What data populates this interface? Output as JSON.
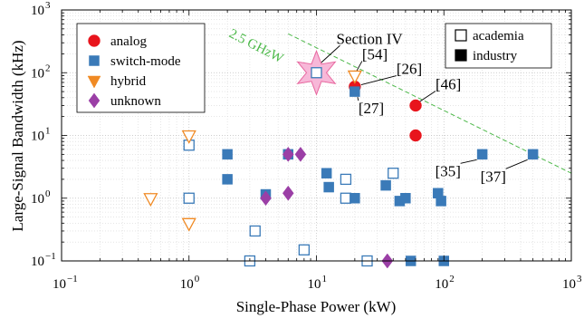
{
  "chart_data": {
    "type": "scatter",
    "xscale": "log",
    "yscale": "log",
    "xlim": [
      0.1,
      1000
    ],
    "ylim": [
      0.1,
      1000
    ],
    "grid": true,
    "xlabel": "Single-Phase Power (kW)",
    "ylabel": "Large-Signal Bandwidth (kHz)",
    "x_ticks": [
      {
        "value": 0.1,
        "base": "10",
        "exp": "−1"
      },
      {
        "value": 1,
        "base": "10",
        "exp": "0"
      },
      {
        "value": 10,
        "base": "10",
        "exp": "1"
      },
      {
        "value": 100,
        "base": "10",
        "exp": "2"
      },
      {
        "value": 1000,
        "base": "10",
        "exp": "3"
      }
    ],
    "y_ticks": [
      {
        "value": 0.1,
        "base": "10",
        "exp": "−1"
      },
      {
        "value": 1,
        "base": "10",
        "exp": "0"
      },
      {
        "value": 10,
        "base": "10",
        "exp": "1"
      },
      {
        "value": 100,
        "base": "10",
        "exp": "2"
      },
      {
        "value": 1000,
        "base": "10",
        "exp": "3"
      }
    ],
    "colors": {
      "analog": "#e8141c",
      "switch-mode": "#3a7ab8",
      "hybrid": "#f08a24",
      "unknown": "#9b3fa6",
      "limit_line": "#4cb849",
      "star_fill": "#f7b8d8",
      "star_edge": "#e8679f"
    },
    "legend_categories": {
      "position": "top-left",
      "items": [
        {
          "label": "analog",
          "series": "analog",
          "marker": "circle"
        },
        {
          "label": "switch-mode",
          "series": "switch-mode",
          "marker": "square"
        },
        {
          "label": "hybrid",
          "series": "hybrid",
          "marker": "triangle-down"
        },
        {
          "label": "unknown",
          "series": "unknown",
          "marker": "diamond"
        }
      ]
    },
    "legend_origin": {
      "position": "top-right",
      "items": [
        {
          "label": "academia",
          "filled": false
        },
        {
          "label": "industry",
          "filled": true
        }
      ]
    },
    "limit_line": {
      "label": "2.5 GHzW",
      "x": [
        6,
        1000
      ],
      "y": [
        416.7,
        2.5
      ]
    },
    "series": [
      {
        "name": "analog",
        "marker": "circle",
        "points": [
          {
            "x": 20,
            "y": 60,
            "filled": true
          },
          {
            "x": 60,
            "y": 30,
            "filled": true
          },
          {
            "x": 60,
            "y": 10,
            "filled": true
          }
        ]
      },
      {
        "name": "switch-mode",
        "marker": "square",
        "points": [
          {
            "x": 1,
            "y": 7,
            "filled": false
          },
          {
            "x": 1,
            "y": 1,
            "filled": false
          },
          {
            "x": 2,
            "y": 5,
            "filled": true
          },
          {
            "x": 2,
            "y": 2,
            "filled": true
          },
          {
            "x": 3,
            "y": 0.1,
            "filled": false
          },
          {
            "x": 3.3,
            "y": 0.3,
            "filled": false
          },
          {
            "x": 4,
            "y": 1.15,
            "filled": true
          },
          {
            "x": 6,
            "y": 5,
            "filled": true
          },
          {
            "x": 8,
            "y": 0.15,
            "filled": false
          },
          {
            "x": 12,
            "y": 2.5,
            "filled": true
          },
          {
            "x": 12.5,
            "y": 1.5,
            "filled": true
          },
          {
            "x": 17,
            "y": 2,
            "filled": false
          },
          {
            "x": 17,
            "y": 1,
            "filled": false
          },
          {
            "x": 20,
            "y": 1,
            "filled": true
          },
          {
            "x": 20,
            "y": 50,
            "filled": true
          },
          {
            "x": 25,
            "y": 0.1,
            "filled": false
          },
          {
            "x": 35,
            "y": 1.6,
            "filled": true
          },
          {
            "x": 40,
            "y": 2.5,
            "filled": false
          },
          {
            "x": 45,
            "y": 0.9,
            "filled": true
          },
          {
            "x": 50,
            "y": 1,
            "filled": true
          },
          {
            "x": 55,
            "y": 0.1,
            "filled": true
          },
          {
            "x": 90,
            "y": 1.2,
            "filled": true
          },
          {
            "x": 95,
            "y": 0.9,
            "filled": true
          },
          {
            "x": 100,
            "y": 0.1,
            "filled": true
          },
          {
            "x": 200,
            "y": 5,
            "filled": true
          },
          {
            "x": 500,
            "y": 5,
            "filled": true
          }
        ]
      },
      {
        "name": "hybrid",
        "marker": "triangle-down",
        "points": [
          {
            "x": 0.5,
            "y": 1,
            "filled": false
          },
          {
            "x": 1,
            "y": 10,
            "filled": false
          },
          {
            "x": 1,
            "y": 0.4,
            "filled": false
          },
          {
            "x": 20,
            "y": 90,
            "filled": false
          }
        ]
      },
      {
        "name": "unknown",
        "marker": "diamond",
        "points": [
          {
            "x": 4,
            "y": 1,
            "filled": true
          },
          {
            "x": 6,
            "y": 5,
            "filled": true
          },
          {
            "x": 6,
            "y": 1.2,
            "filled": true
          },
          {
            "x": 7.5,
            "y": 5,
            "filled": true
          },
          {
            "x": 36,
            "y": 0.1,
            "filled": true
          }
        ]
      }
    ],
    "highlight": {
      "label": "Section IV",
      "x": 10,
      "y": 100,
      "marker": "square",
      "filled": false
    },
    "annotations": [
      {
        "text": "[54]",
        "x": 20,
        "y": 90
      },
      {
        "text": "[26]",
        "x": 20,
        "y": 60
      },
      {
        "text": "[27]",
        "x": 20,
        "y": 50
      },
      {
        "text": "[46]",
        "x": 60,
        "y": 30
      },
      {
        "text": "[35]",
        "x": 200,
        "y": 5
      },
      {
        "text": "[37]",
        "x": 500,
        "y": 5
      }
    ]
  }
}
